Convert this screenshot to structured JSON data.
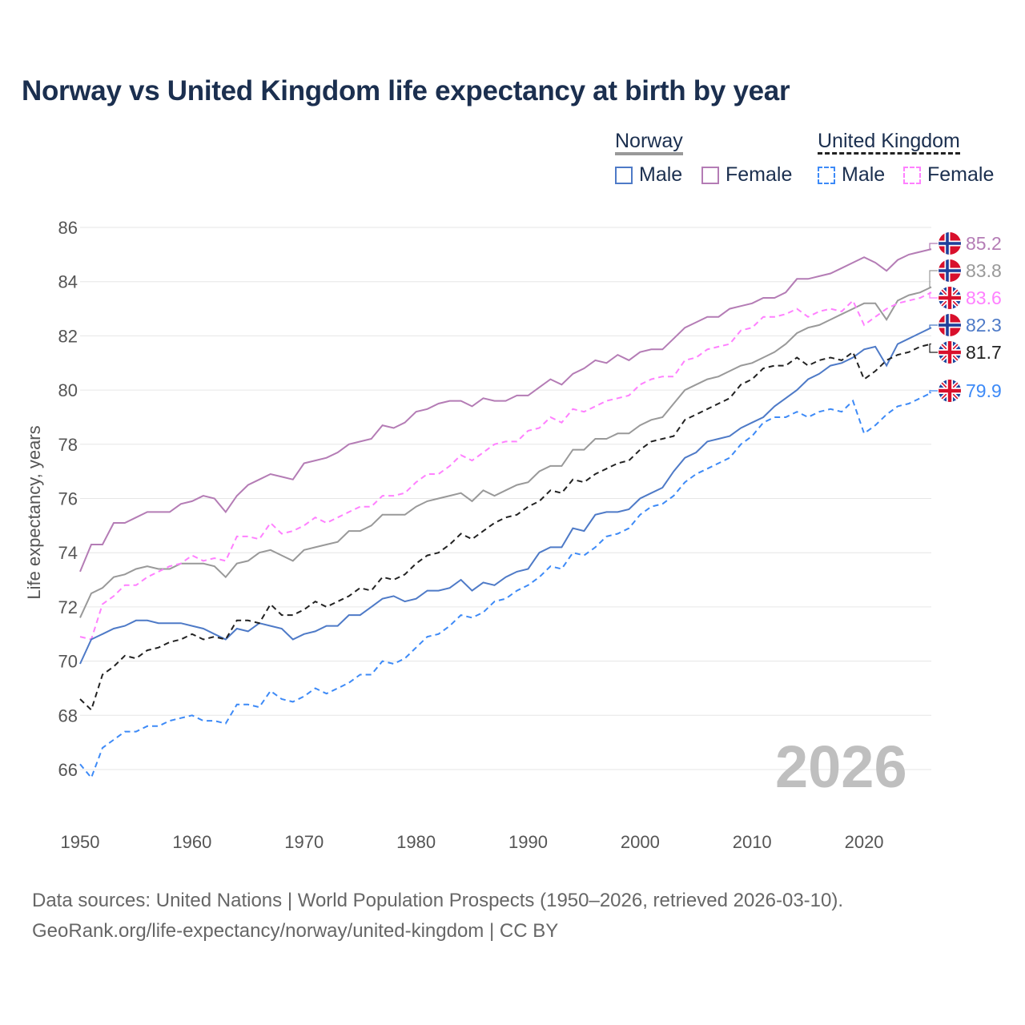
{
  "chart_data": {
    "type": "line",
    "title": "Norway vs United Kingdom life expectancy at birth by year",
    "ylabel": "Life expectancy, years",
    "xlabel": "",
    "xlim": [
      1950,
      2026
    ],
    "ylim": [
      64.5,
      86.5
    ],
    "yticks": [
      66,
      68,
      70,
      72,
      74,
      76,
      78,
      80,
      82,
      84,
      86
    ],
    "xticks": [
      1950,
      1960,
      1970,
      1980,
      1990,
      2000,
      2010,
      2020
    ],
    "grid": true,
    "legend_position": "top-right",
    "x_start": 1950,
    "series": [
      {
        "name": "Norway Female",
        "country": "Norway",
        "flag": "norway",
        "color": "#b47cb5",
        "dashed": false,
        "label": "85.2",
        "values": [
          73.3,
          74.3,
          74.3,
          75.1,
          75.1,
          75.3,
          75.5,
          75.5,
          75.5,
          75.8,
          75.9,
          76.1,
          76.0,
          75.5,
          76.1,
          76.5,
          76.7,
          76.9,
          76.8,
          76.7,
          77.3,
          77.4,
          77.5,
          77.7,
          78.0,
          78.1,
          78.2,
          78.7,
          78.6,
          78.8,
          79.2,
          79.3,
          79.5,
          79.6,
          79.6,
          79.4,
          79.7,
          79.6,
          79.6,
          79.8,
          79.8,
          80.1,
          80.4,
          80.2,
          80.6,
          80.8,
          81.1,
          81.0,
          81.3,
          81.1,
          81.4,
          81.5,
          81.5,
          81.9,
          82.3,
          82.5,
          82.7,
          82.7,
          83.0,
          83.1,
          83.2,
          83.4,
          83.4,
          83.6,
          84.1,
          84.1,
          84.2,
          84.3,
          84.5,
          84.7,
          84.9,
          84.7,
          84.4,
          84.8,
          85.0,
          85.1,
          85.2
        ]
      },
      {
        "name": "Norway Total",
        "country": "Norway",
        "flag": "norway",
        "color": "#999999",
        "dashed": false,
        "label": "83.8",
        "values": [
          71.6,
          72.5,
          72.7,
          73.1,
          73.2,
          73.4,
          73.5,
          73.4,
          73.4,
          73.6,
          73.6,
          73.6,
          73.5,
          73.1,
          73.6,
          73.7,
          74.0,
          74.1,
          73.9,
          73.7,
          74.1,
          74.2,
          74.3,
          74.4,
          74.8,
          74.8,
          75.0,
          75.4,
          75.4,
          75.4,
          75.7,
          75.9,
          76.0,
          76.1,
          76.2,
          75.9,
          76.3,
          76.1,
          76.3,
          76.5,
          76.6,
          77.0,
          77.2,
          77.2,
          77.8,
          77.8,
          78.2,
          78.2,
          78.4,
          78.4,
          78.7,
          78.9,
          79.0,
          79.5,
          80.0,
          80.2,
          80.4,
          80.5,
          80.7,
          80.9,
          81.0,
          81.2,
          81.4,
          81.7,
          82.1,
          82.3,
          82.4,
          82.6,
          82.8,
          83.0,
          83.2,
          83.2,
          82.6,
          83.3,
          83.5,
          83.6,
          83.8
        ]
      },
      {
        "name": "United Kingdom Female",
        "country": "United Kingdom",
        "flag": "uk",
        "color": "#ff80ff",
        "dashed": true,
        "label": "83.6",
        "values": [
          70.9,
          70.8,
          72.1,
          72.4,
          72.8,
          72.8,
          73.1,
          73.3,
          73.5,
          73.6,
          73.9,
          73.7,
          73.8,
          73.7,
          74.6,
          74.6,
          74.5,
          75.1,
          74.7,
          74.8,
          75.0,
          75.3,
          75.1,
          75.3,
          75.5,
          75.7,
          75.7,
          76.1,
          76.1,
          76.2,
          76.6,
          76.9,
          76.9,
          77.2,
          77.6,
          77.4,
          77.7,
          78.0,
          78.1,
          78.1,
          78.5,
          78.6,
          79.0,
          78.8,
          79.3,
          79.2,
          79.4,
          79.6,
          79.7,
          79.8,
          80.2,
          80.4,
          80.5,
          80.5,
          81.1,
          81.2,
          81.5,
          81.6,
          81.7,
          82.2,
          82.3,
          82.7,
          82.7,
          82.8,
          83.0,
          82.7,
          82.9,
          83.0,
          82.9,
          83.3,
          82.4,
          82.7,
          83.0,
          83.2,
          83.3,
          83.4,
          83.6
        ]
      },
      {
        "name": "Norway Male",
        "country": "Norway",
        "flag": "norway",
        "color": "#4e7ac7",
        "dashed": false,
        "label": "82.3",
        "values": [
          69.9,
          70.8,
          71.0,
          71.2,
          71.3,
          71.5,
          71.5,
          71.4,
          71.4,
          71.4,
          71.3,
          71.2,
          71.0,
          70.8,
          71.2,
          71.1,
          71.4,
          71.3,
          71.2,
          70.8,
          71.0,
          71.1,
          71.3,
          71.3,
          71.7,
          71.7,
          72.0,
          72.3,
          72.4,
          72.2,
          72.3,
          72.6,
          72.6,
          72.7,
          73.0,
          72.6,
          72.9,
          72.8,
          73.1,
          73.3,
          73.4,
          74.0,
          74.2,
          74.2,
          74.9,
          74.8,
          75.4,
          75.5,
          75.5,
          75.6,
          76.0,
          76.2,
          76.4,
          77.0,
          77.5,
          77.7,
          78.1,
          78.2,
          78.3,
          78.6,
          78.8,
          79.0,
          79.4,
          79.7,
          80.0,
          80.4,
          80.6,
          80.9,
          81.0,
          81.2,
          81.5,
          81.6,
          80.9,
          81.7,
          81.9,
          82.1,
          82.3
        ]
      },
      {
        "name": "United Kingdom Total",
        "country": "United Kingdom",
        "flag": "uk",
        "color": "#222222",
        "dashed": true,
        "label": "81.7",
        "values": [
          68.6,
          68.2,
          69.5,
          69.8,
          70.2,
          70.1,
          70.4,
          70.5,
          70.7,
          70.8,
          71.0,
          70.8,
          70.9,
          70.8,
          71.5,
          71.5,
          71.4,
          72.1,
          71.7,
          71.7,
          71.9,
          72.2,
          72.0,
          72.2,
          72.4,
          72.7,
          72.6,
          73.1,
          73.0,
          73.2,
          73.6,
          73.9,
          74.0,
          74.3,
          74.7,
          74.5,
          74.8,
          75.1,
          75.3,
          75.4,
          75.7,
          75.9,
          76.3,
          76.2,
          76.7,
          76.6,
          76.9,
          77.1,
          77.3,
          77.4,
          77.8,
          78.1,
          78.2,
          78.3,
          78.9,
          79.1,
          79.3,
          79.5,
          79.7,
          80.2,
          80.4,
          80.8,
          80.9,
          80.9,
          81.2,
          80.9,
          81.1,
          81.2,
          81.1,
          81.4,
          80.4,
          80.7,
          81.1,
          81.3,
          81.4,
          81.6,
          81.7
        ]
      },
      {
        "name": "United Kingdom Male",
        "country": "United Kingdom",
        "flag": "uk",
        "color": "#3d8af7",
        "dashed": true,
        "label": "79.9",
        "values": [
          66.2,
          65.7,
          66.8,
          67.1,
          67.4,
          67.4,
          67.6,
          67.6,
          67.8,
          67.9,
          68.0,
          67.8,
          67.8,
          67.7,
          68.4,
          68.4,
          68.3,
          68.9,
          68.6,
          68.5,
          68.7,
          69.0,
          68.8,
          69.0,
          69.2,
          69.5,
          69.5,
          70.0,
          69.9,
          70.1,
          70.5,
          70.9,
          71.0,
          71.3,
          71.7,
          71.6,
          71.8,
          72.2,
          72.3,
          72.6,
          72.8,
          73.1,
          73.5,
          73.4,
          74.0,
          73.9,
          74.2,
          74.6,
          74.7,
          74.9,
          75.4,
          75.7,
          75.8,
          76.1,
          76.6,
          76.9,
          77.1,
          77.3,
          77.5,
          78.0,
          78.3,
          78.8,
          79.0,
          79.0,
          79.2,
          79.0,
          79.2,
          79.3,
          79.2,
          79.6,
          78.4,
          78.7,
          79.1,
          79.4,
          79.5,
          79.7,
          79.9
        ]
      }
    ]
  },
  "legend": {
    "norway": "Norway",
    "uk": "United Kingdom",
    "male": "Male",
    "female": "Female",
    "norway_male_color": "#4e7ac7",
    "norway_female_color": "#b47cb5",
    "uk_male_color": "#3d8af7",
    "uk_female_color": "#ff80ff"
  },
  "current_year": "2026",
  "source_line1": "Data sources: United Nations | World Population Prospects (1950–2026, retrieved 2026-03-10).",
  "source_line2": "GeoRank.org/life-expectancy/norway/united-kingdom | CC BY"
}
